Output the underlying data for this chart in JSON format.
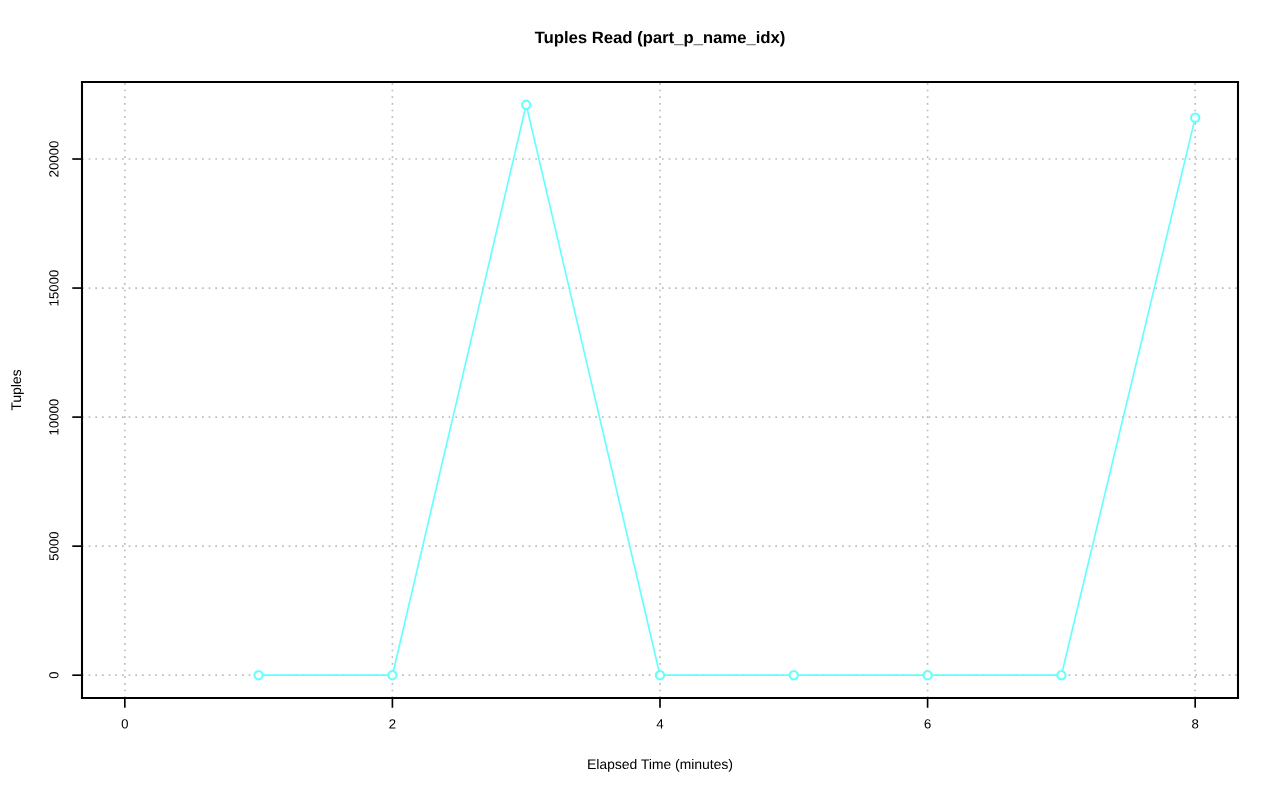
{
  "chart_data": {
    "type": "line",
    "title": "Tuples Read (part_p_name_idx)",
    "xlabel": "Elapsed Time (minutes)",
    "ylabel": "Tuples",
    "x": [
      1,
      2,
      3,
      4,
      5,
      6,
      7,
      8
    ],
    "series": [
      {
        "color": "#66ffff",
        "values": [
          0,
          0,
          22100,
          0,
          0,
          0,
          0,
          21600
        ]
      }
    ],
    "xlim": [
      -0.32,
      8.32
    ],
    "xticks": [
      0,
      2,
      4,
      6,
      8
    ],
    "ylim": [
      -884,
      22984
    ],
    "yticks": [
      0,
      5000,
      10000,
      15000,
      20000
    ],
    "grid": true,
    "marker": "circle",
    "line_style": "solid"
  }
}
